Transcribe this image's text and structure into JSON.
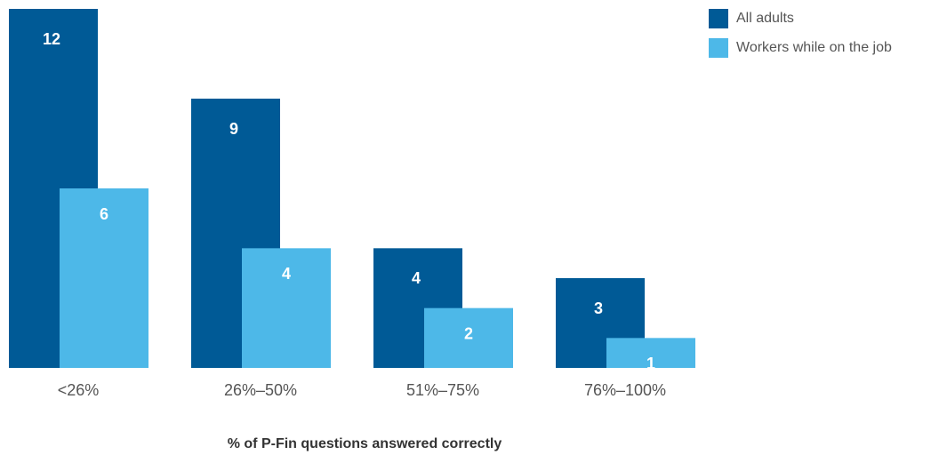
{
  "chart_data": {
    "type": "bar",
    "categories": [
      "<26%",
      "26%–50%",
      "51%–75%",
      "76%–100%"
    ],
    "series": [
      {
        "name": "All adults",
        "color": "#005a96",
        "values": [
          12,
          9,
          4,
          3
        ]
      },
      {
        "name": "Workers while on the job",
        "color": "#4db8e8",
        "values": [
          6,
          4,
          2,
          1
        ]
      }
    ],
    "xlabel": "% of P-Fin questions answered correctly",
    "legend": "top-right"
  }
}
